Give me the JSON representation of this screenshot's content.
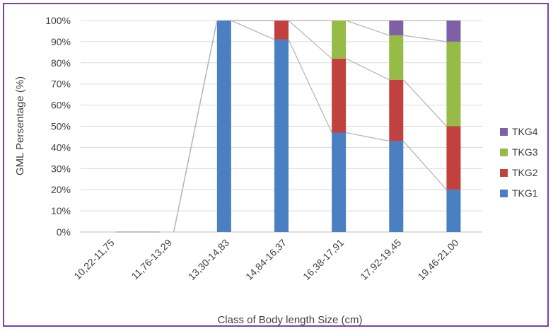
{
  "chart_data": {
    "type": "bar",
    "stacked": true,
    "percent_stacked": true,
    "series_lines": true,
    "title": "",
    "xlabel": "Class of Body length Size (cm)",
    "ylabel": "GML Persentage (%)",
    "ylim": [
      0,
      100
    ],
    "yticks": [
      "0%",
      "10%",
      "20%",
      "30%",
      "40%",
      "50%",
      "60%",
      "70%",
      "80%",
      "90%",
      "100%"
    ],
    "grid": "horizontal",
    "legend_position": "right",
    "categories": [
      "10,22-11,75",
      "11,76-13,29",
      "13,30-14,83",
      "14,84-16,37",
      "16,38-17,91",
      "17,92-19,45",
      "19,46-21,00"
    ],
    "series": [
      {
        "name": "TKG1",
        "color": "#4a7fc1",
        "values": [
          0,
          0,
          100,
          91,
          47,
          43,
          20
        ]
      },
      {
        "name": "TKG2",
        "color": "#c0413d",
        "values": [
          0,
          0,
          0,
          9,
          35,
          29,
          30
        ]
      },
      {
        "name": "TKG3",
        "color": "#96bb47",
        "values": [
          0,
          0,
          0,
          0,
          18,
          21,
          40
        ]
      },
      {
        "name": "TKG4",
        "color": "#7f5fa6",
        "values": [
          0,
          0,
          0,
          0,
          0,
          7,
          10
        ]
      }
    ]
  }
}
